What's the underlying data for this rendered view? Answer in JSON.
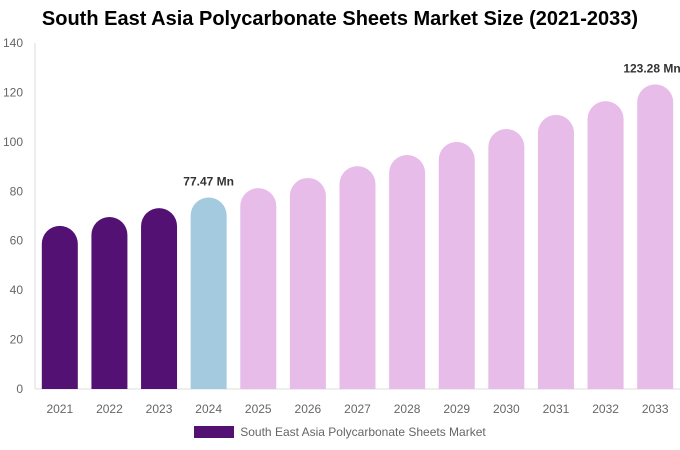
{
  "chart_data": {
    "type": "bar",
    "title": "South East Asia Polycarbonate Sheets Market Size (2021-2033)",
    "categories": [
      "2021",
      "2022",
      "2023",
      "2024",
      "2025",
      "2026",
      "2027",
      "2028",
      "2029",
      "2030",
      "2031",
      "2032",
      "2033"
    ],
    "series": [
      {
        "name": "South East Asia Polycarbonate Sheets Market",
        "values": [
          66.0,
          69.6,
          73.2,
          77.47,
          81.3,
          85.4,
          90.2,
          94.7,
          100.0,
          105.2,
          110.9,
          116.5,
          123.28
        ]
      }
    ],
    "data_labels": [
      {
        "category": "2024",
        "text": "77.47 Mn"
      },
      {
        "category": "2033",
        "text": "123.28 Mn"
      }
    ],
    "ylim": [
      0,
      140
    ],
    "yticks": [
      0,
      20,
      40,
      60,
      80,
      100,
      120,
      140
    ],
    "grid": false,
    "legend_position": "bottom",
    "colors": {
      "historical": "#531273",
      "base_year": "#a3cadf",
      "forecast": "#e7bce9"
    }
  }
}
